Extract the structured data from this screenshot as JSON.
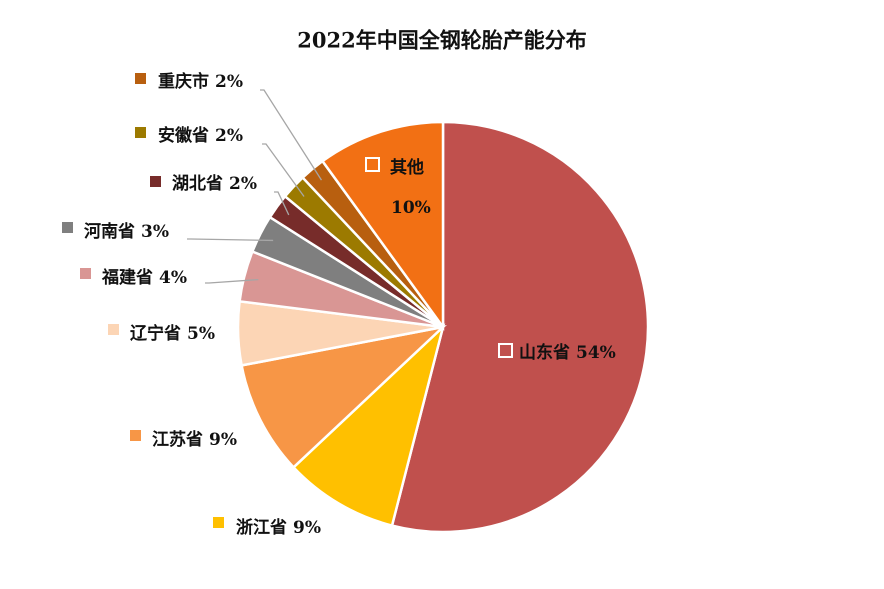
{
  "chart_data": {
    "type": "pie",
    "title": "2022年中国全钢轮胎产能分布",
    "categories": [
      "山东省",
      "浙江省",
      "江苏省",
      "辽宁省",
      "福建省",
      "河南省",
      "湖北省",
      "安徽省",
      "重庆市",
      "其他"
    ],
    "values": [
      54,
      9,
      9,
      5,
      4,
      3,
      2,
      2,
      2,
      10
    ],
    "value_labels": [
      "54%",
      "9%",
      "9%",
      "5%",
      "4%",
      "3%",
      "2%",
      "2%",
      "2%",
      "10%"
    ],
    "colors": [
      "#c0504d",
      "#ffc000",
      "#f79646",
      "#fcd5b5",
      "#d99694",
      "#7f7f7f",
      "#772c2a",
      "#9c7a00",
      "#b85f0f",
      "#f27014"
    ]
  }
}
